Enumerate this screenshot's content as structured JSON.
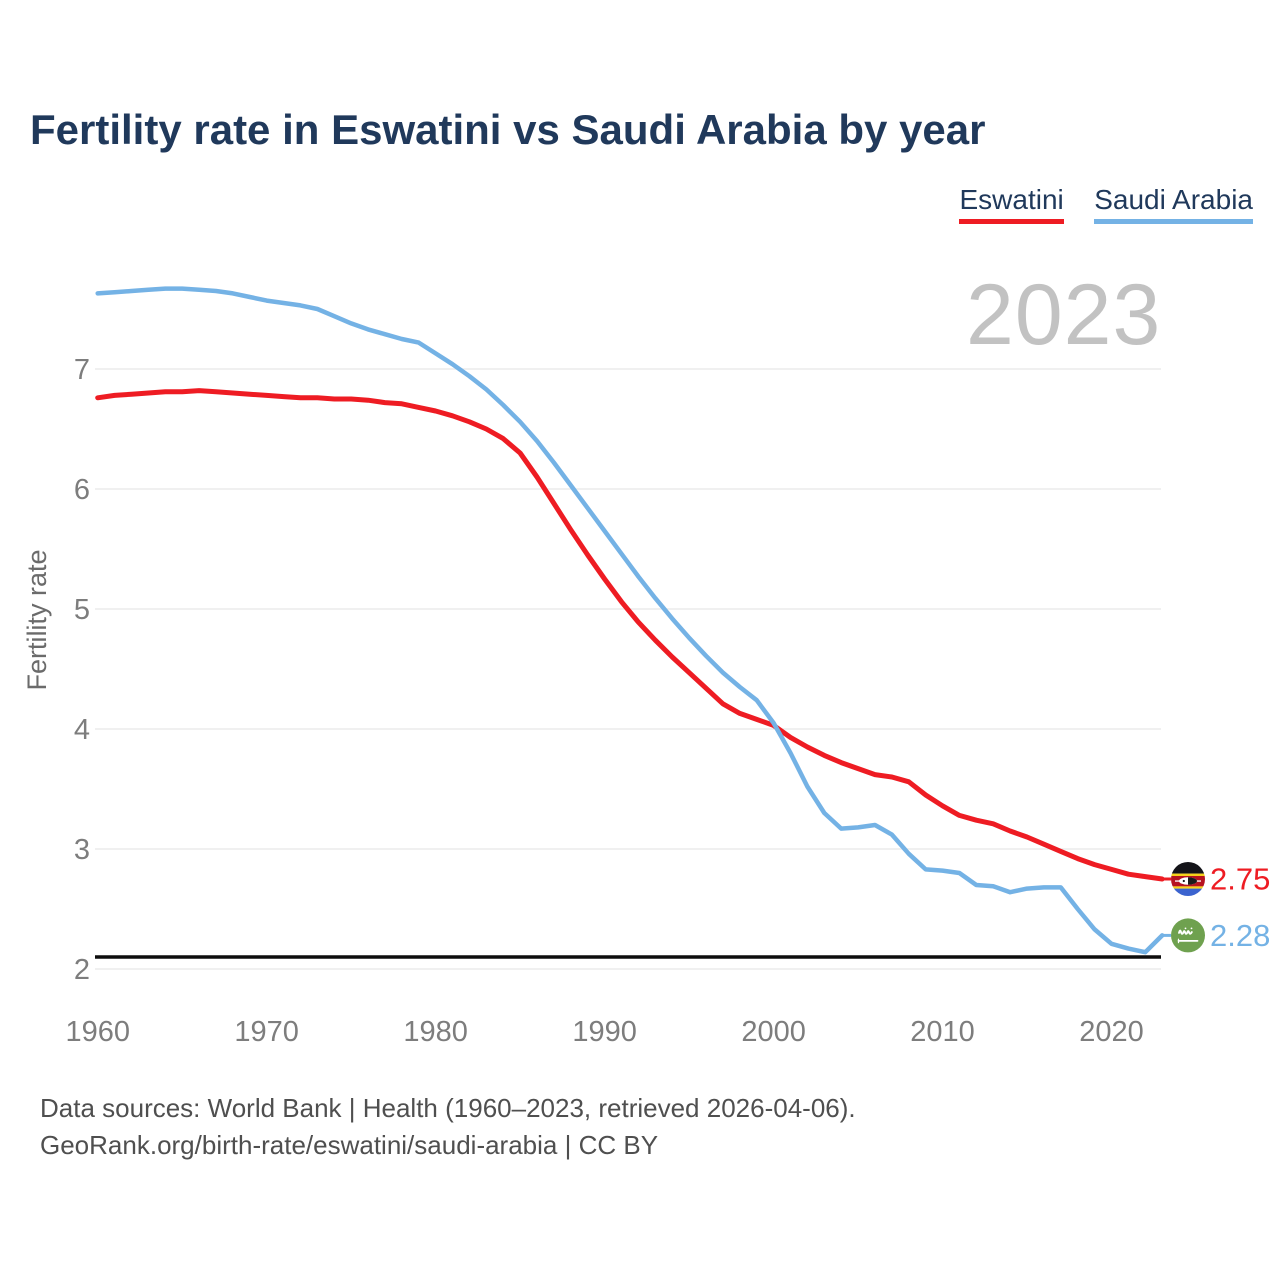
{
  "header": {
    "title": "Fertility rate in Eswatini vs Saudi Arabia by year"
  },
  "legend": {
    "items": [
      {
        "label": "Eswatini",
        "color": "#ee1c23"
      },
      {
        "label": "Saudi Arabia",
        "color": "#74b2e5"
      }
    ]
  },
  "watermark": "2023",
  "chart_data": {
    "type": "line",
    "title": "Fertility rate in Eswatini vs Saudi Arabia by year",
    "xlabel": "",
    "ylabel": "Fertility rate",
    "x_ticks": [
      1960,
      1970,
      1980,
      1990,
      2000,
      2010,
      2020
    ],
    "y_ticks": [
      2,
      3,
      4,
      5,
      6,
      7
    ],
    "ylim": [
      2,
      7.8
    ],
    "xlim": [
      1960,
      2023
    ],
    "grid": "horizontal",
    "legend_position": "top-right",
    "x": [
      1960,
      1961,
      1962,
      1963,
      1964,
      1965,
      1966,
      1967,
      1968,
      1969,
      1970,
      1971,
      1972,
      1973,
      1974,
      1975,
      1976,
      1977,
      1978,
      1979,
      1980,
      1981,
      1982,
      1983,
      1984,
      1985,
      1986,
      1987,
      1988,
      1989,
      1990,
      1991,
      1992,
      1993,
      1994,
      1995,
      1996,
      1997,
      1998,
      1999,
      2000,
      2001,
      2002,
      2003,
      2004,
      2005,
      2006,
      2007,
      2008,
      2009,
      2010,
      2011,
      2012,
      2013,
      2014,
      2015,
      2016,
      2017,
      2018,
      2019,
      2020,
      2021,
      2022,
      2023
    ],
    "series": [
      {
        "name": "Eswatini",
        "color": "#ee1c23",
        "flag": "eswatini-flag",
        "end_label": "2.75",
        "values": [
          6.76,
          6.78,
          6.79,
          6.8,
          6.81,
          6.81,
          6.82,
          6.81,
          6.8,
          6.79,
          6.78,
          6.77,
          6.76,
          6.76,
          6.75,
          6.75,
          6.74,
          6.72,
          6.71,
          6.68,
          6.65,
          6.61,
          6.56,
          6.5,
          6.42,
          6.3,
          6.1,
          5.88,
          5.66,
          5.45,
          5.25,
          5.06,
          4.89,
          4.74,
          4.6,
          4.47,
          4.34,
          4.21,
          4.13,
          4.08,
          4.03,
          3.93,
          3.85,
          3.78,
          3.72,
          3.67,
          3.62,
          3.6,
          3.56,
          3.45,
          3.36,
          3.28,
          3.24,
          3.21,
          3.15,
          3.1,
          3.04,
          2.98,
          2.92,
          2.87,
          2.83,
          2.79,
          2.77,
          2.75
        ]
      },
      {
        "name": "Saudi Arabia",
        "color": "#74b2e5",
        "flag": "saudi-arabia-flag",
        "end_label": "2.28",
        "values": [
          7.63,
          7.64,
          7.65,
          7.66,
          7.67,
          7.67,
          7.66,
          7.65,
          7.63,
          7.6,
          7.57,
          7.55,
          7.53,
          7.5,
          7.44,
          7.38,
          7.33,
          7.29,
          7.25,
          7.22,
          7.13,
          7.04,
          6.94,
          6.83,
          6.7,
          6.56,
          6.4,
          6.22,
          6.03,
          5.84,
          5.65,
          5.46,
          5.27,
          5.09,
          4.92,
          4.76,
          4.61,
          4.47,
          4.35,
          4.24,
          4.05,
          3.8,
          3.52,
          3.3,
          3.17,
          3.18,
          3.2,
          3.12,
          2.96,
          2.83,
          2.82,
          2.8,
          2.7,
          2.69,
          2.64,
          2.67,
          2.68,
          2.68,
          2.5,
          2.33,
          2.21,
          2.17,
          2.14,
          2.28
        ]
      }
    ],
    "reference_line": {
      "value": 2.1,
      "color": "#0d0d0d"
    }
  },
  "footer": {
    "line1": "Data sources: World Bank | Health (1960–2023, retrieved 2026-04-06).",
    "line2": "GeoRank.org/birth-rate/eswatini/saudi-arabia | CC BY"
  }
}
